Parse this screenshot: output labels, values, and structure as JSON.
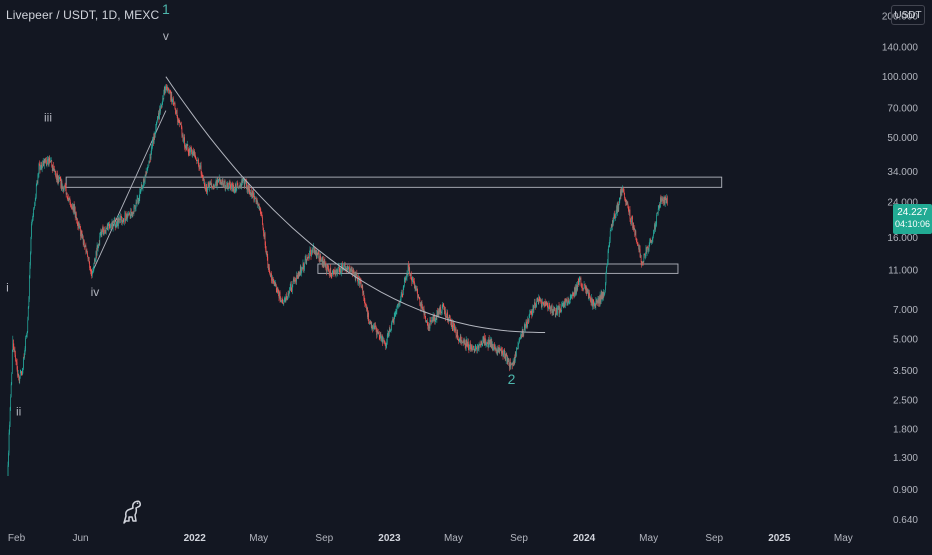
{
  "header": {
    "title": "Livepeer / USDT, 1D, MEXC",
    "currency": "USDT"
  },
  "price_badge": {
    "price": "24.227",
    "countdown": "04:10:06",
    "color": "#22ab94"
  },
  "colors": {
    "background": "#131722",
    "up": "#26a69a",
    "down": "#ef5350",
    "drawing": "#b2b5be",
    "wave_major": "#4db6ac",
    "text": "#b2b5be"
  },
  "logo": {
    "icon": "tradingview-dino-icon"
  },
  "chart_data": {
    "type": "candlestick",
    "title": "Livepeer / USDT, 1D, MEXC",
    "y_scale": "log",
    "ylim": [
      0.58,
      240
    ],
    "xlim": [
      "2021-01-01",
      "2025-07-20"
    ],
    "y_ticks": [
      "200.000",
      "140.000",
      "100.000",
      "70.000",
      "50.000",
      "34.000",
      "24.000",
      "16.000",
      "11.000",
      "7.000",
      "5.000",
      "3.500",
      "2.500",
      "1.800",
      "1.300",
      "0.900",
      "0.640"
    ],
    "x_ticks": [
      {
        "label": "Feb",
        "date": "2021-02-01"
      },
      {
        "label": "Jun",
        "date": "2021-06-01"
      },
      {
        "label": "2022",
        "date": "2022-01-01"
      },
      {
        "label": "May",
        "date": "2022-05-01"
      },
      {
        "label": "Sep",
        "date": "2022-09-01"
      },
      {
        "label": "2023",
        "date": "2023-01-01"
      },
      {
        "label": "May",
        "date": "2023-05-01"
      },
      {
        "label": "Sep",
        "date": "2023-09-01"
      },
      {
        "label": "2024",
        "date": "2024-01-01"
      },
      {
        "label": "May",
        "date": "2024-05-01"
      },
      {
        "label": "Sep",
        "date": "2024-09-01"
      },
      {
        "label": "2025",
        "date": "2025-01-01"
      },
      {
        "label": "May",
        "date": "2025-05-01"
      }
    ],
    "last_price": 24.227,
    "price_path": [
      [
        "2021-01-15",
        1.05
      ],
      [
        "2021-01-25",
        4.8
      ],
      [
        "2021-02-05",
        3.2
      ],
      [
        "2021-02-12",
        3.5
      ],
      [
        "2021-02-22",
        6.0
      ],
      [
        "2021-03-01",
        18
      ],
      [
        "2021-03-15",
        36
      ],
      [
        "2021-04-05",
        38
      ],
      [
        "2021-04-15",
        32
      ],
      [
        "2021-05-01",
        28
      ],
      [
        "2021-05-20",
        22
      ],
      [
        "2021-06-10",
        14
      ],
      [
        "2021-06-22",
        10.8
      ],
      [
        "2021-07-10",
        17
      ],
      [
        "2021-08-10",
        19
      ],
      [
        "2021-09-10",
        22
      ],
      [
        "2021-10-01",
        32
      ],
      [
        "2021-10-20",
        55
      ],
      [
        "2021-11-08",
        92
      ],
      [
        "2021-11-25",
        70
      ],
      [
        "2021-12-15",
        45
      ],
      [
        "2022-01-05",
        40
      ],
      [
        "2022-01-22",
        28
      ],
      [
        "2022-02-15",
        30
      ],
      [
        "2022-03-15",
        28
      ],
      [
        "2022-04-05",
        30
      ],
      [
        "2022-05-05",
        22
      ],
      [
        "2022-05-20",
        11
      ],
      [
        "2022-06-15",
        7.5
      ],
      [
        "2022-07-10",
        10
      ],
      [
        "2022-08-10",
        14
      ],
      [
        "2022-09-15",
        10.5
      ],
      [
        "2022-10-15",
        11.5
      ],
      [
        "2022-11-08",
        9.5
      ],
      [
        "2022-11-25",
        6.0
      ],
      [
        "2022-12-25",
        4.8
      ],
      [
        "2023-01-20",
        7.5
      ],
      [
        "2023-02-05",
        11.2
      ],
      [
        "2023-02-25",
        8.0
      ],
      [
        "2023-03-15",
        5.8
      ],
      [
        "2023-04-10",
        7.2
      ],
      [
        "2023-05-10",
        5.2
      ],
      [
        "2023-06-10",
        4.3
      ],
      [
        "2023-06-25",
        5.0
      ],
      [
        "2023-07-15",
        4.6
      ],
      [
        "2023-08-05",
        4.2
      ],
      [
        "2023-08-18",
        3.6
      ],
      [
        "2023-09-01",
        4.9
      ],
      [
        "2023-10-05",
        7.8
      ],
      [
        "2023-11-10",
        6.8
      ],
      [
        "2023-12-10",
        8.2
      ],
      [
        "2023-12-25",
        9.8
      ],
      [
        "2024-01-20",
        7.3
      ],
      [
        "2024-02-08",
        8.5
      ],
      [
        "2024-02-20",
        18
      ],
      [
        "2024-03-05",
        23
      ],
      [
        "2024-03-12",
        28
      ],
      [
        "2024-04-05",
        17
      ],
      [
        "2024-04-18",
        12
      ],
      [
        "2024-05-10",
        17
      ],
      [
        "2024-05-25",
        25
      ],
      [
        "2024-06-05",
        24.2
      ]
    ],
    "annotations": [
      {
        "text": "1",
        "date": "2021-11-08",
        "price": 205,
        "style": "major"
      },
      {
        "text": "v",
        "date": "2021-11-08",
        "price": 152,
        "style": "minor"
      },
      {
        "text": "iii",
        "date": "2021-04-01",
        "price": 60,
        "style": "minor"
      },
      {
        "text": "i",
        "date": "2021-01-15",
        "price": 8.6,
        "style": "minor"
      },
      {
        "text": "iv",
        "date": "2021-06-28",
        "price": 8.2,
        "style": "minor"
      },
      {
        "text": "ii",
        "date": "2021-02-05",
        "price": 2.1,
        "style": "minor"
      },
      {
        "text": "2",
        "date": "2023-08-18",
        "price": 3.0,
        "style": "major"
      }
    ],
    "drawings": {
      "resistance_zone": {
        "from": "2021-05-05",
        "to": "2024-09-15",
        "low": 28.3,
        "high": 31.8
      },
      "support_zone": {
        "from": "2022-08-20",
        "to": "2024-06-25",
        "low": 10.6,
        "high": 11.8
      },
      "trendline": {
        "from": [
          "2021-06-22",
          10.6
        ],
        "to": [
          "2021-11-08",
          68
        ]
      },
      "decay_curve": {
        "from": "2021-11-08",
        "to": "2023-10-20",
        "start": 100,
        "end": 5.4
      }
    }
  }
}
